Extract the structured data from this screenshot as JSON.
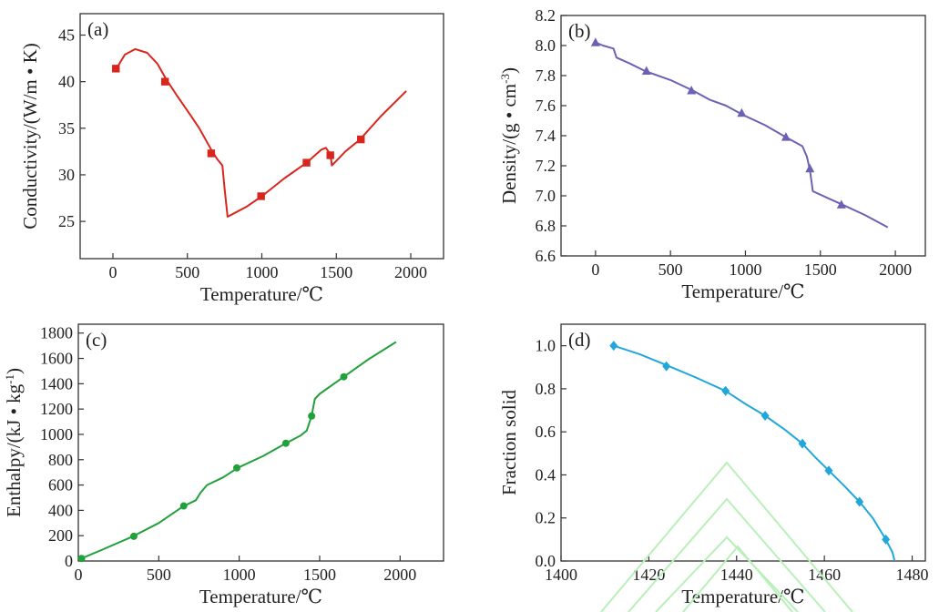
{
  "chart_data": [
    {
      "panel": "(a)",
      "type": "line",
      "xlabel": "Temperature/℃",
      "ylabel": "Conductivity/(W/m • K)",
      "xlim": [
        -220,
        2220
      ],
      "ylim": [
        21,
        47.3
      ],
      "xticks": [
        0,
        500,
        1000,
        1500,
        2000
      ],
      "yticks": [
        25,
        30,
        35,
        40,
        45
      ],
      "color": "#d9251c",
      "marker": "square",
      "series": [
        {
          "curve": [
            [
              20,
              41.3
            ],
            [
              80,
              42.9
            ],
            [
              150,
              43.5
            ],
            [
              230,
              43.1
            ],
            [
              300,
              41.9
            ],
            [
              360,
              40.2
            ],
            [
              430,
              38.5
            ],
            [
              500,
              36.9
            ],
            [
              580,
              35.0
            ],
            [
              660,
              32.7
            ],
            [
              700,
              31.7
            ],
            [
              735,
              31.0
            ],
            [
              750,
              28.5
            ],
            [
              770,
              25.5
            ],
            [
              900,
              26.6
            ],
            [
              1000,
              27.7
            ],
            [
              1150,
              29.6
            ],
            [
              1300,
              31.3
            ],
            [
              1400,
              32.7
            ],
            [
              1430,
              32.9
            ],
            [
              1460,
              32.2
            ],
            [
              1470,
              31.0
            ],
            [
              1560,
              32.5
            ],
            [
              1660,
              33.8
            ],
            [
              1800,
              36.3
            ],
            [
              1970,
              39.0
            ]
          ],
          "markers": [
            [
              20,
              41.4
            ],
            [
              350,
              40.0
            ],
            [
              660,
              32.3
            ],
            [
              995,
              27.7
            ],
            [
              1300,
              31.3
            ],
            [
              1460,
              32.1
            ],
            [
              1665,
              33.8
            ]
          ]
        }
      ]
    },
    {
      "panel": "(b)",
      "type": "line",
      "xlabel": "Temperature/℃",
      "ylabel": "Density/(g • cm-3)",
      "ylabel_main": "Density/(g • cm",
      "ylabel_sup": "-3",
      "ylabel_end": ")",
      "xlim": [
        -230,
        2200
      ],
      "ylim": [
        6.6,
        8.2
      ],
      "xticks": [
        0,
        500,
        1000,
        1500,
        2000
      ],
      "yticks": [
        "6.6",
        "6.8",
        "7.0",
        "7.2",
        "7.4",
        "7.6",
        "7.8",
        "8.0",
        "8.2"
      ],
      "color": "#6b62b4",
      "marker": "triangle",
      "series": [
        {
          "curve": [
            [
              0,
              8.02
            ],
            [
              50,
              8.0
            ],
            [
              120,
              7.98
            ],
            [
              140,
              7.92
            ],
            [
              230,
              7.88
            ],
            [
              330,
              7.83
            ],
            [
              500,
              7.77
            ],
            [
              650,
              7.7
            ],
            [
              760,
              7.64
            ],
            [
              870,
              7.6
            ],
            [
              980,
              7.54
            ],
            [
              1130,
              7.47
            ],
            [
              1270,
              7.39
            ],
            [
              1380,
              7.33
            ],
            [
              1410,
              7.26
            ],
            [
              1430,
              7.17
            ],
            [
              1450,
              7.03
            ],
            [
              1560,
              6.98
            ],
            [
              1650,
              6.94
            ],
            [
              1800,
              6.87
            ],
            [
              1950,
              6.79
            ]
          ],
          "markers": [
            [
              0,
              8.02
            ],
            [
              340,
              7.83
            ],
            [
              640,
              7.7
            ],
            [
              975,
              7.55
            ],
            [
              1270,
              7.39
            ],
            [
              1430,
              7.18
            ],
            [
              1640,
              6.94
            ]
          ]
        }
      ]
    },
    {
      "panel": "(c)",
      "type": "line",
      "xlabel": "Temperature/℃",
      "ylabel": "Enthalpy/(kJ • kg-1)",
      "ylabel_main": "Enthalpy/(kJ • kg",
      "ylabel_sup": "-1",
      "ylabel_end": ")",
      "xlim": [
        0,
        2270
      ],
      "ylim": [
        0,
        1870
      ],
      "xticks": [
        0,
        500,
        1000,
        1500,
        2000
      ],
      "yticks": [
        0,
        200,
        400,
        600,
        800,
        1000,
        1200,
        1400,
        1600,
        1800
      ],
      "color": "#22a03b",
      "marker": "circle",
      "series": [
        {
          "curve": [
            [
              20,
              20
            ],
            [
              150,
              90
            ],
            [
              340,
              195
            ],
            [
              500,
              300
            ],
            [
              650,
              430
            ],
            [
              730,
              480
            ],
            [
              760,
              540
            ],
            [
              800,
              600
            ],
            [
              900,
              660
            ],
            [
              990,
              735
            ],
            [
              1150,
              830
            ],
            [
              1290,
              930
            ],
            [
              1380,
              990
            ],
            [
              1420,
              1030
            ],
            [
              1450,
              1145
            ],
            [
              1470,
              1280
            ],
            [
              1500,
              1320
            ],
            [
              1650,
              1455
            ],
            [
              1800,
              1590
            ],
            [
              1975,
              1730
            ]
          ],
          "markers": [
            [
              20,
              20
            ],
            [
              345,
              195
            ],
            [
              655,
              435
            ],
            [
              985,
              735
            ],
            [
              1290,
              930
            ],
            [
              1450,
              1145
            ],
            [
              1650,
              1455
            ]
          ]
        }
      ]
    },
    {
      "panel": "(d)",
      "type": "line",
      "xlabel": "Temperature/℃",
      "ylabel": "Fraction solid",
      "xlim": [
        1400,
        1483
      ],
      "ylim": [
        0,
        1.1
      ],
      "xticks": [
        1400,
        1420,
        1440,
        1460,
        1480
      ],
      "yticks": [
        "0.0",
        "0.2",
        "0.4",
        "0.6",
        "0.8",
        "1.0"
      ],
      "color": "#22a7db",
      "marker": "diamond",
      "series": [
        {
          "curve": [
            [
              1412,
              1.0
            ],
            [
              1418,
              0.96
            ],
            [
              1424,
              0.91
            ],
            [
              1431,
              0.85
            ],
            [
              1437.5,
              0.79
            ],
            [
              1442,
              0.73
            ],
            [
              1446.5,
              0.675
            ],
            [
              1451,
              0.61
            ],
            [
              1455,
              0.545
            ],
            [
              1458,
              0.48
            ],
            [
              1461,
              0.42
            ],
            [
              1464.5,
              0.35
            ],
            [
              1468,
              0.275
            ],
            [
              1471,
              0.2
            ],
            [
              1474,
              0.1
            ],
            [
              1475.5,
              0.04
            ],
            [
              1476,
              0.0
            ]
          ],
          "markers": [
            [
              1412,
              1.0
            ],
            [
              1424,
              0.905
            ],
            [
              1437.5,
              0.79
            ],
            [
              1446.5,
              0.675
            ],
            [
              1455,
              0.545
            ],
            [
              1461,
              0.42
            ],
            [
              1468,
              0.275
            ],
            [
              1474,
              0.1
            ]
          ]
        }
      ]
    }
  ]
}
